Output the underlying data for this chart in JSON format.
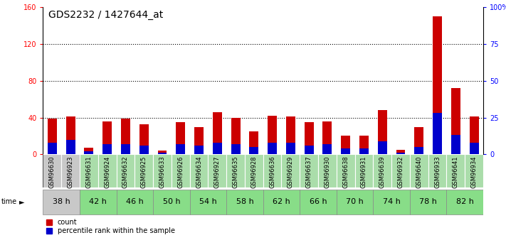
{
  "title": "GDS2232 / 1427644_at",
  "samples": [
    "GSM96630",
    "GSM96923",
    "GSM96631",
    "GSM96924",
    "GSM96632",
    "GSM96925",
    "GSM96633",
    "GSM96926",
    "GSM96634",
    "GSM96927",
    "GSM96635",
    "GSM96928",
    "GSM96636",
    "GSM96929",
    "GSM96637",
    "GSM96930",
    "GSM96638",
    "GSM96931",
    "GSM96639",
    "GSM96932",
    "GSM96640",
    "GSM96933",
    "GSM96641",
    "GSM96934"
  ],
  "count_values": [
    39,
    41,
    7,
    36,
    39,
    33,
    4,
    35,
    30,
    46,
    40,
    25,
    42,
    41,
    35,
    36,
    20,
    20,
    48,
    5,
    30,
    150,
    72,
    41
  ],
  "percentile_values": [
    8,
    10,
    2,
    7,
    7,
    6,
    1,
    7,
    6,
    8,
    7,
    5,
    8,
    8,
    6,
    7,
    4,
    4,
    9,
    1,
    5,
    28,
    13,
    8
  ],
  "time_groups": [
    {
      "label": "38 h",
      "indices": [
        0,
        1
      ]
    },
    {
      "label": "42 h",
      "indices": [
        2,
        3
      ]
    },
    {
      "label": "46 h",
      "indices": [
        4,
        5
      ]
    },
    {
      "label": "50 h",
      "indices": [
        6,
        7
      ]
    },
    {
      "label": "54 h",
      "indices": [
        8,
        9
      ]
    },
    {
      "label": "58 h",
      "indices": [
        10,
        11
      ]
    },
    {
      "label": "62 h",
      "indices": [
        12,
        13
      ]
    },
    {
      "label": "66 h",
      "indices": [
        14,
        15
      ]
    },
    {
      "label": "70 h",
      "indices": [
        16,
        17
      ]
    },
    {
      "label": "74 h",
      "indices": [
        18,
        19
      ]
    },
    {
      "label": "78 h",
      "indices": [
        20,
        21
      ]
    },
    {
      "label": "82 h",
      "indices": [
        22,
        23
      ]
    }
  ],
  "ylim_left": [
    0,
    160
  ],
  "ylim_right": [
    0,
    100
  ],
  "yticks_left": [
    0,
    40,
    80,
    120,
    160
  ],
  "yticks_right": [
    0,
    25,
    50,
    75,
    100
  ],
  "ytick_labels_right": [
    "0",
    "25",
    "50",
    "75",
    "100%"
  ],
  "bar_color_count": "#cc0000",
  "bar_color_percentile": "#0000cc",
  "sample_bg_gray": "#c8c8c8",
  "sample_bg_green": "#aaddaa",
  "time_bg_gray": "#c8c8c8",
  "time_bg_green": "#88dd88",
  "legend_count_label": "count",
  "legend_percentile_label": "percentile rank within the sample",
  "title_fontsize": 10,
  "tick_fontsize": 7,
  "label_fontsize": 6,
  "time_fontsize": 8,
  "bar_width": 0.5
}
